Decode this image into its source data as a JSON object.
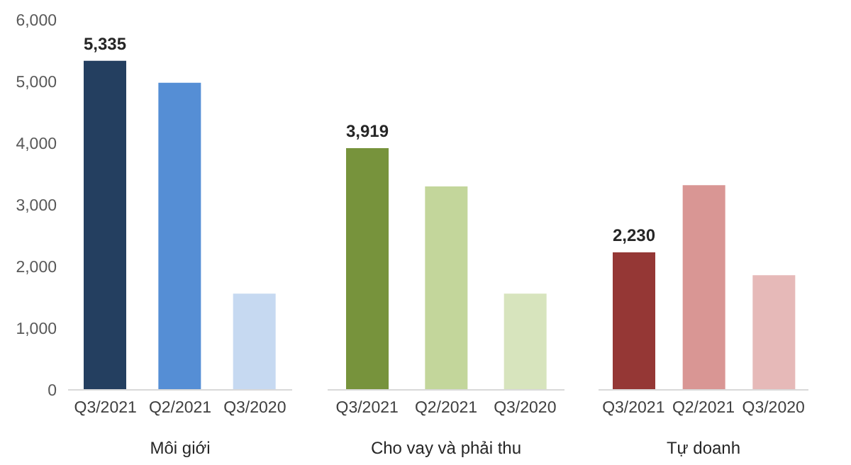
{
  "chart_data": [
    {
      "type": "bar",
      "categories": [
        "Q3/2021",
        "Q2/2021",
        "Q3/2020"
      ],
      "xlabel": "Môi giới",
      "values": [
        5335,
        4980,
        1560
      ],
      "colors": [
        "#243f60",
        "#558ed5",
        "#c6d9f1"
      ],
      "value_labels": [
        "5,335",
        null,
        null
      ],
      "ylim": [
        0,
        6000
      ],
      "yticks": [
        {
          "value": 0,
          "label": "0"
        },
        {
          "value": 1000,
          "label": "1,000"
        },
        {
          "value": 2000,
          "label": "2,000"
        },
        {
          "value": 3000,
          "label": "3,000"
        },
        {
          "value": 4000,
          "label": "4,000"
        },
        {
          "value": 5000,
          "label": "5,000"
        },
        {
          "value": 6000,
          "label": "6,000"
        }
      ],
      "grid": false
    },
    {
      "type": "bar",
      "categories": [
        "Q3/2021",
        "Q2/2021",
        "Q3/2020"
      ],
      "xlabel": "Cho vay và phải thu",
      "values": [
        3919,
        3300,
        1560
      ],
      "colors": [
        "#77933c",
        "#c3d69b",
        "#d7e4bd"
      ],
      "value_labels": [
        "3,919",
        null,
        null
      ],
      "ylim": [
        0,
        6000
      ],
      "tick_labels": "x",
      "grid": false
    },
    {
      "type": "bar",
      "categories": [
        "Q3/2021",
        "Q2/2021",
        "Q3/2020"
      ],
      "xlabel": "Tự doanh",
      "values": [
        2230,
        3320,
        1860
      ],
      "colors": [
        "#953735",
        "#d99694",
        "#e6b9b8"
      ],
      "value_labels": [
        "2,230",
        null,
        null
      ],
      "ylim": [
        0,
        6000
      ],
      "tick_labels": "x",
      "grid": false
    }
  ]
}
